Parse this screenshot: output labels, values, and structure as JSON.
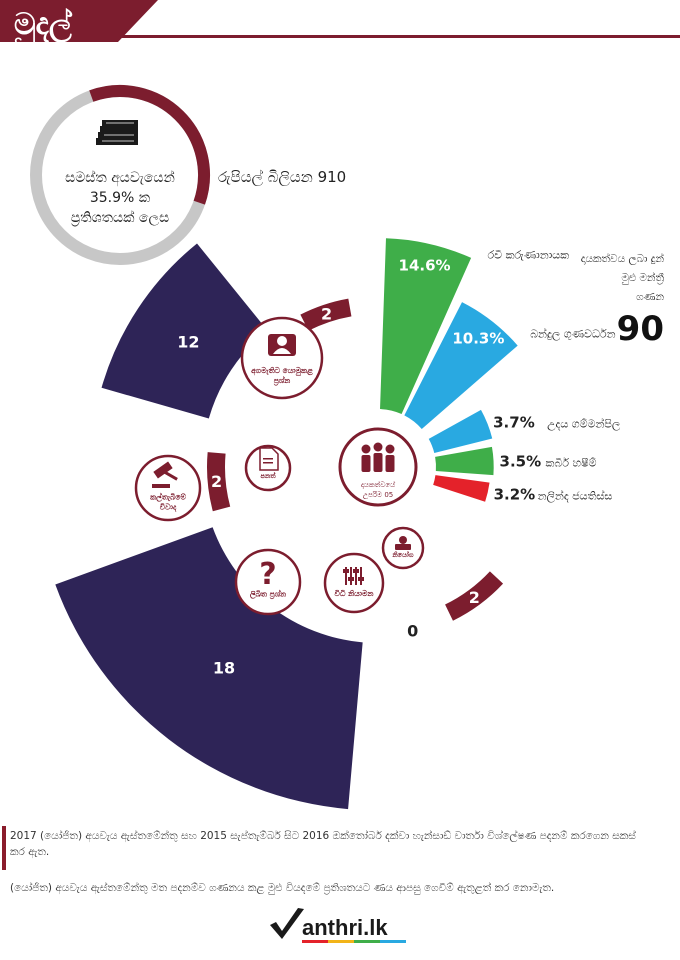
{
  "header": {
    "title": "මුදල්"
  },
  "summary": {
    "lines": [
      "සමස්ත අයවැයෙන්",
      "35.9% ක",
      "ප්‍රතිශතයක් ලෙස"
    ],
    "amount": "රුපියල් බිලියන 910",
    "share_percent": 35.9,
    "icon": "money-stack-icon"
  },
  "mp_count": {
    "lines": [
      "දායකත්වය ලබා දුන්",
      "මුළු මන්ත්‍රී",
      "ගණන"
    ],
    "value": "90"
  },
  "center": {
    "lines": [
      "දායකත්වයේ",
      "උපරිම 05"
    ],
    "icon": "people-icon"
  },
  "colors": {
    "primary": "#7c1d2e",
    "navy": "#2e2457",
    "green": "#3fae49",
    "blue": "#29a9e1",
    "red": "#e4222a"
  },
  "chart_data": [
    {
      "type": "bar",
      "subtype": "radial",
      "title": "",
      "categories": [
        "රවී කරුණානායක",
        "බන්දුල ගුණවර්ධන",
        "උදය ගම්මන්පිල",
        "කබීර් හෂීම්",
        "නලින්ද ජයතිස්ස"
      ],
      "values": [
        14.6,
        10.3,
        3.7,
        3.5,
        3.2
      ],
      "labels": [
        "14.6%",
        "10.3%",
        "3.7%",
        "3.5%",
        "3.2%"
      ],
      "colors": [
        "#3fae49",
        "#29a9e1",
        "#29a9e1",
        "#3fae49",
        "#e4222a"
      ]
    },
    {
      "type": "bar",
      "subtype": "radial",
      "title": "",
      "categories": [
        "නියෝග",
        "විධි නියාමන",
        "ලිඛිත ප්‍රශ්න",
        "කල්තැබීමේ විවාද",
        "පනත්",
        "අගමැතිට යොමුකළ ප්‍රශ්න"
      ],
      "icons": [
        "stamp-icon",
        "sliders-icon",
        "question-icon",
        "gavel-icon",
        "document-icon",
        "person-icon"
      ],
      "values": [
        2,
        0,
        18,
        2,
        12,
        2
      ],
      "labels": [
        "2",
        "0",
        "18",
        "2",
        "12",
        "2"
      ]
    }
  ],
  "footer": {
    "note1": "2017 (යෝජිත) අයවැය ඇස්තමේන්තු සහ 2015 සැප්තැම්බර් සිට 2016 ඔක්තෝබර් දක්වා හැන්සාඩ් වාර්තා විශ්ලේෂණ පදනම් කරගෙන සකස් කර ඇත.",
    "note2": "(යෝජිත) අයවැය ඇස්තමේන්තු මත පදනම්ව ගණනය කළ මුළු වියදමේ ප්‍රතිශතයට ණය ආපසු ගෙවීම් ඇතුළත් කර නොමැත.",
    "brand": "anthri.lk"
  }
}
